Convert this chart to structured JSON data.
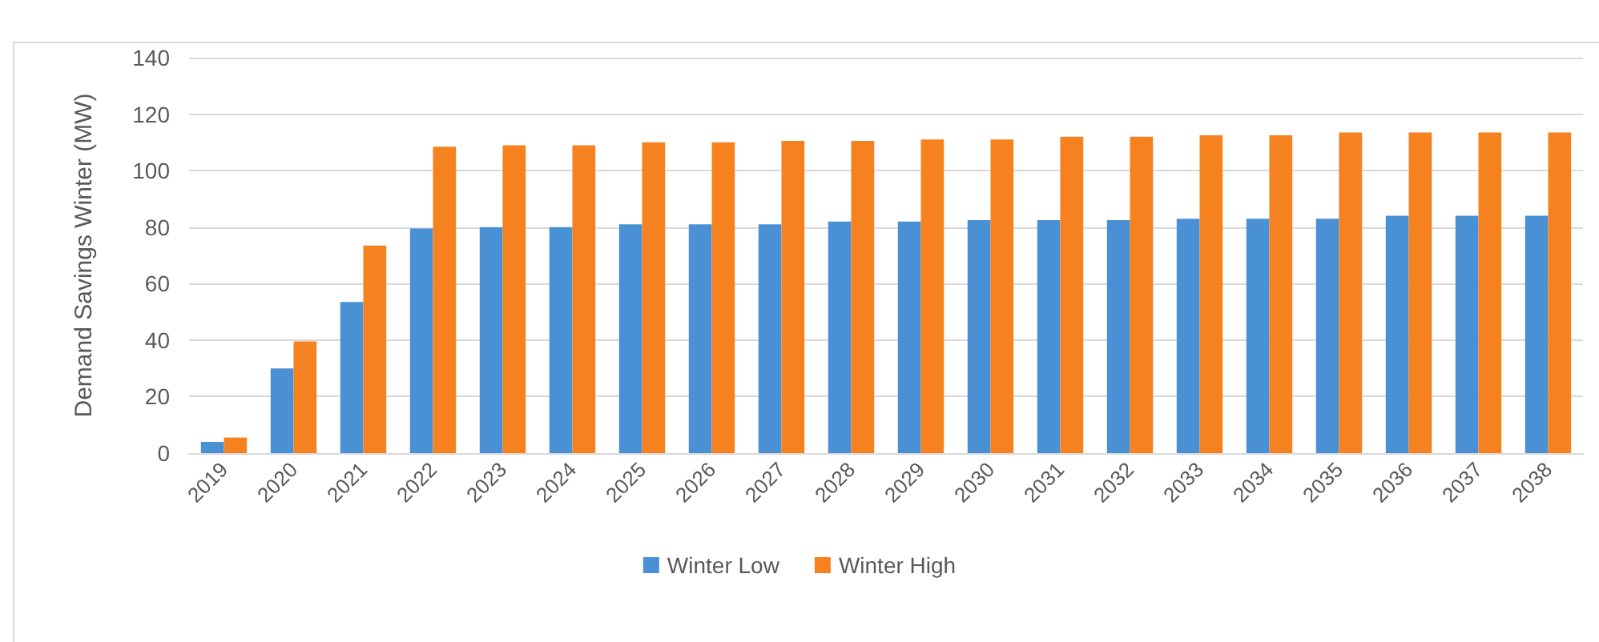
{
  "chart_data": {
    "type": "bar",
    "ylabel": "Demand Savings Winter (MW)",
    "categories": [
      "2019",
      "2020",
      "2021",
      "2022",
      "2023",
      "2024",
      "2025",
      "2026",
      "2027",
      "2028",
      "2029",
      "2030",
      "2031",
      "2032",
      "2033",
      "2034",
      "2035",
      "2036",
      "2037",
      "2038"
    ],
    "series": [
      {
        "name": "Winter Low",
        "color": "#4a90d4",
        "values": [
          4,
          30,
          53.5,
          79.5,
          80,
          80,
          81,
          81,
          81,
          82,
          82,
          82.5,
          82.5,
          82.5,
          83,
          83,
          83,
          84,
          84,
          84
        ]
      },
      {
        "name": "Winter High",
        "color": "#f5821f",
        "values": [
          5.5,
          39.5,
          73.5,
          108.5,
          109,
          109,
          110,
          110,
          110.5,
          110.5,
          111,
          111,
          112,
          112,
          112.5,
          112.5,
          113.5,
          113.5,
          113.5,
          113.5
        ]
      }
    ],
    "ylim": [
      0,
      140
    ],
    "yticks": [
      0,
      20,
      40,
      60,
      80,
      100,
      120,
      140
    ],
    "grid": "y",
    "legend": "bottom"
  }
}
